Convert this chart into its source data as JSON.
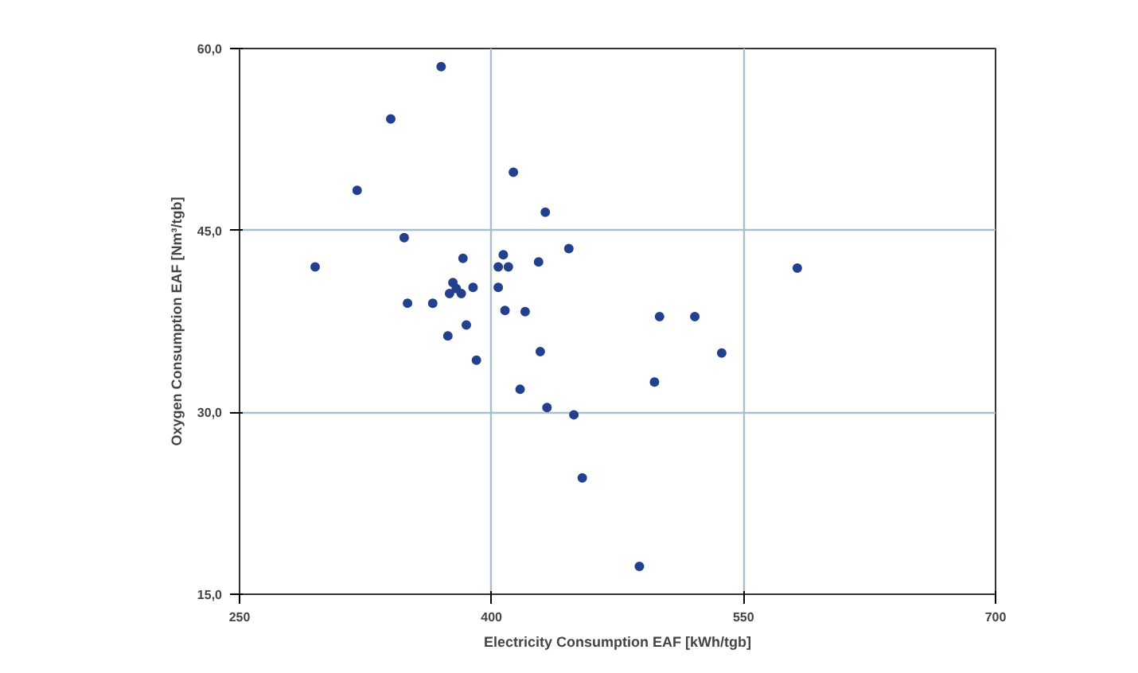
{
  "chart_data": {
    "type": "scatter",
    "xlabel": "Electricity Consumption EAF [kWh/tgb]",
    "ylabel": "Oxygen Consumption EAF [Nm³/tgb]",
    "xlim": [
      250,
      700
    ],
    "ylim": [
      15,
      60
    ],
    "xticks": [
      250,
      400,
      550,
      700
    ],
    "yticks": [
      {
        "value": 15,
        "label": "15,0"
      },
      {
        "value": 30,
        "label": "30,0"
      },
      {
        "value": 45,
        "label": "45,0"
      },
      {
        "value": 60,
        "label": "60,0"
      }
    ],
    "grid": true,
    "marker": "circle",
    "series": [
      {
        "color": "#23408e",
        "x": [
          370,
          340,
          320,
          348,
          295,
          383,
          377,
          375,
          382,
          379,
          389,
          350,
          365,
          385,
          374,
          391,
          404,
          407,
          410,
          404,
          408,
          420,
          413,
          432,
          428,
          446,
          429,
          417,
          433,
          449,
          454,
          582,
          500,
          521,
          537,
          497,
          488
        ],
        "values": [
          58.5,
          54.2,
          48.3,
          44.4,
          42.0,
          42.7,
          40.7,
          39.8,
          39.8,
          40.2,
          40.3,
          39.0,
          39.0,
          37.2,
          36.3,
          34.3,
          42.0,
          43.0,
          42.0,
          40.3,
          38.4,
          38.3,
          49.8,
          46.5,
          42.4,
          43.5,
          35.0,
          31.9,
          30.4,
          29.8,
          24.6,
          41.9,
          37.9,
          37.9,
          34.9,
          32.5,
          17.3
        ]
      }
    ]
  }
}
